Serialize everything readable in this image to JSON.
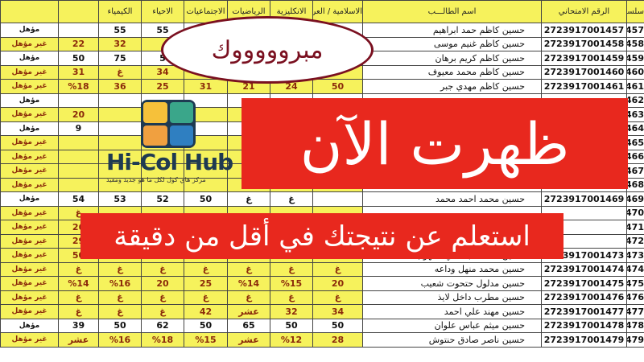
{
  "table": {
    "headers": [
      "سلسل",
      "الرقم الامتحاني",
      "اسم الطالـــب",
      "الاسلامية / العربية",
      "الانكليزية",
      "الرياضيات",
      "الاجتماعيات",
      "الاحياء",
      "الكيمياء",
      "",
      ""
    ],
    "rows": [
      [
        "457",
        "2723917001457",
        "حسين كاظم حمد ابراهيم",
        "",
        "",
        "",
        "",
        "55",
        "55",
        "",
        "مؤهل",
        "pass"
      ],
      [
        "458",
        "2723917001458",
        "حسين كاظم غنيم موسى",
        "",
        "",
        "",
        "",
        "",
        "32",
        "22",
        "غير مؤهل",
        "fail"
      ],
      [
        "459",
        "2723917001459",
        "حسين كاظم كريم برهان",
        "",
        "",
        "",
        "",
        "5",
        "75",
        "50",
        "مؤهل",
        "pass"
      ],
      [
        "460",
        "2723917001460",
        "حسين كاظم محمد معيوف",
        "",
        "",
        "",
        "",
        "34",
        "غ",
        "31",
        "غير مؤهل",
        "fail"
      ],
      [
        "461",
        "2723917001461",
        "حسين كاظم مهدي جبر",
        "50",
        "24",
        "21",
        "31",
        "25",
        "36",
        "%18",
        "غير مؤهل",
        "fail"
      ],
      [
        "462",
        "",
        "",
        "",
        "",
        "",
        "",
        "",
        "",
        "",
        "مؤهل",
        "pass"
      ],
      [
        "463",
        "",
        "",
        "",
        "",
        "",
        "",
        "",
        "",
        "20",
        "غير مؤهل",
        "fail"
      ],
      [
        "464",
        "",
        "",
        "",
        "",
        "",
        "",
        "",
        "",
        "9",
        "مؤهل",
        "pass"
      ],
      [
        "465",
        "",
        "",
        "",
        "",
        "",
        "",
        "",
        "",
        "",
        "غير مؤهل",
        "fail"
      ],
      [
        "466",
        "",
        "",
        "",
        "",
        "",
        "",
        "",
        "",
        "",
        "غير مؤهل",
        "fail"
      ],
      [
        "467",
        "",
        "",
        "",
        "",
        "",
        "",
        "",
        "",
        "",
        "غير مؤهل",
        "fail"
      ],
      [
        "468",
        "",
        "",
        "",
        "",
        "",
        "",
        "",
        "",
        "",
        "غير مؤهل",
        "fail"
      ],
      [
        "469",
        "2723917001469",
        "حسين محمد احمد محمد",
        "",
        "غ",
        "غ",
        "50",
        "52",
        "53",
        "54",
        "مؤهل",
        "pass"
      ],
      [
        "470",
        "",
        "",
        "",
        "",
        "",
        "",
        "",
        "",
        "غ",
        "غير مؤهل",
        "fail"
      ],
      [
        "471",
        "",
        "",
        "",
        "",
        "",
        "",
        "",
        "",
        "26",
        "غير مؤهل",
        "fail"
      ],
      [
        "472",
        "",
        "",
        "",
        "",
        "",
        "",
        "",
        "",
        "29",
        "غير مؤهل",
        "fail"
      ],
      [
        "473",
        "2723917001473",
        "حسين محمد عبد علي سلهوب",
        "",
        "32",
        "%17",
        "37",
        "41",
        "%19",
        "50",
        "غير مؤهل",
        "fail"
      ],
      [
        "474",
        "2723917001474",
        "حسين محمد منهل وداعه",
        "غ",
        "غ",
        "غ",
        "غ",
        "غ",
        "غ",
        "غ",
        "غير مؤهل",
        "fail"
      ],
      [
        "475",
        "2723917001475",
        "حسين مدلول حتحوت شعيب",
        "20",
        "%15",
        "%14",
        "25",
        "20",
        "%16",
        "%14",
        "غير مؤهل",
        "fail"
      ],
      [
        "476",
        "2723917001476",
        "حسين مطرب داخل لايذ",
        "غ",
        "غ",
        "غ",
        "غ",
        "غ",
        "غ",
        "غ",
        "غير مؤهل",
        "fail"
      ],
      [
        "477",
        "2723917001477",
        "حسين مهند علي احمد",
        "34",
        "32",
        "عشر",
        "42",
        "غ",
        "غ",
        "غ",
        "غير مؤهل",
        "fail"
      ],
      [
        "478",
        "2723917001478",
        "حسين ميثم عباس علوان",
        "50",
        "50",
        "65",
        "50",
        "62",
        "50",
        "39",
        "مؤهل",
        "pass"
      ],
      [
        "479",
        "2723917001479",
        "حسين ناصر صادق حنتوش",
        "28",
        "%12",
        "عشر",
        "%15",
        "%18",
        "%16",
        "عشر",
        "غير مؤهل",
        "fail"
      ]
    ]
  },
  "overlay": {
    "congrats": "مبروووووك",
    "headline": "ظهرت الآن",
    "subline": "استعلم عن نتيجتك في أقل من دقيقة"
  },
  "brand": {
    "name": "Hi-Col Hub",
    "tagline": "مركز هاي كول لكل ما هو جديد ومفيد",
    "colors": {
      "navy": "#1e3a52",
      "yellow": "#f6c13a",
      "green": "#3aa68a",
      "orange": "#f0a040",
      "blue": "#2f7fc1"
    }
  },
  "colors": {
    "banner": "#e8281e",
    "row_fail": "#f6f25c",
    "ellipse_border": "#7a1020"
  }
}
